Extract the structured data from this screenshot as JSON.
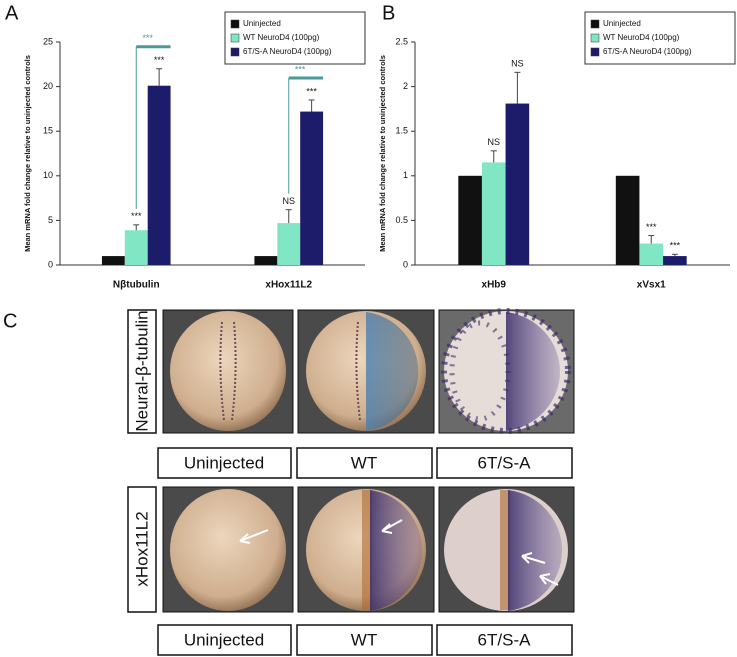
{
  "panel_labels": [
    "A",
    "B",
    "C"
  ],
  "chart_data": [
    {
      "type": "bar",
      "ylabel": "Mean mRNA fold change relative to uninjected controls",
      "categories": [
        "Nβtubulin",
        "xHox11L2"
      ],
      "series": [
        {
          "name": "Uninjected",
          "color": "#111111",
          "values": [
            1,
            1
          ]
        },
        {
          "name": "WT NeuroD4  (100pg)",
          "color": "#80e6c4",
          "values": [
            3.9,
            4.7
          ],
          "errors": [
            0.6,
            1.5
          ],
          "significance": [
            "***",
            "NS"
          ]
        },
        {
          "name": "6T/S-A NeuroD4  (100pg)",
          "color": "#1c1c6a",
          "values": [
            20.1,
            17.2
          ],
          "errors": [
            1.9,
            1.3
          ],
          "significance": [
            "***",
            "***"
          ]
        }
      ],
      "brackets": [
        "***",
        "***"
      ],
      "ylim": [
        0,
        25
      ],
      "yticks": [
        0,
        5,
        10,
        15,
        20,
        25
      ],
      "legend": "top-right"
    },
    {
      "type": "bar",
      "ylabel": "Mean mRNA fold change relative to uninjected controls",
      "categories": [
        "xHb9",
        "xVsx1"
      ],
      "series": [
        {
          "name": "Uninjected",
          "color": "#111111",
          "values": [
            1,
            1
          ]
        },
        {
          "name": "WT NeuroD4  (100pg)",
          "color": "#80e6c4",
          "values": [
            1.15,
            0.24
          ],
          "errors": [
            0.13,
            0.09
          ],
          "significance": [
            "NS",
            "***"
          ]
        },
        {
          "name": "6T/S-A NeuroD4  (100pg)",
          "color": "#1c1c6a",
          "values": [
            1.81,
            0.1
          ],
          "errors": [
            0.35,
            0.02
          ],
          "significance": [
            "NS",
            "***"
          ]
        }
      ],
      "ylim": [
        0,
        2.5
      ],
      "yticks": [
        0,
        0.5,
        1,
        1.5,
        2,
        2.5
      ],
      "legend": "top-right"
    }
  ],
  "panel_c": {
    "rows": [
      {
        "label": "Neural-β-tubulin",
        "columns": [
          "Uninjected",
          "WT",
          "6T/S-A"
        ]
      },
      {
        "label": "xHox11L2",
        "columns": [
          "Uninjected",
          "WT",
          "6T/S-A"
        ]
      }
    ]
  }
}
